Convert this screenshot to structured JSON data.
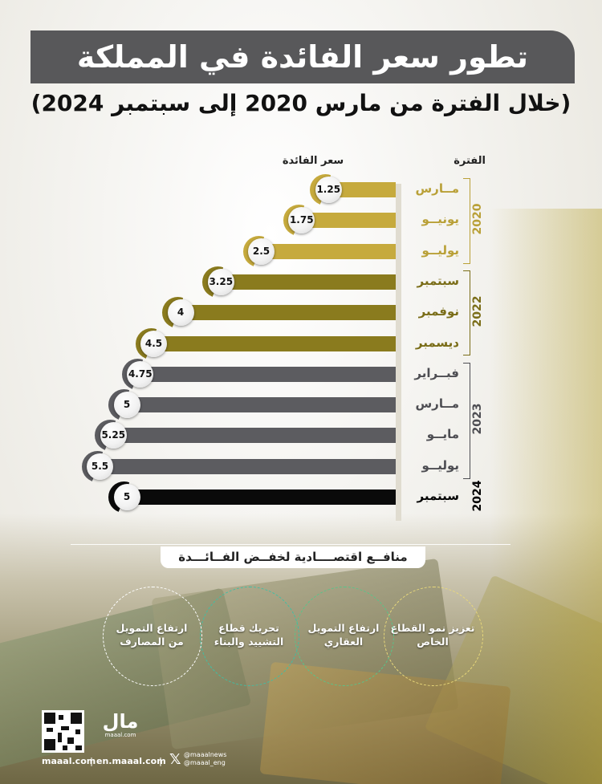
{
  "title": "تطور سعر الفائدة في المملكة",
  "subtitle": "(خلال الفترة من مارس 2020 إلى سبتمبر 2024)",
  "headers": {
    "period": "الفترة",
    "rate": "سعر الفائدة"
  },
  "colors": {
    "y2020": "#c6aa3d",
    "y2022": "#8a7b1e",
    "y2023": "#5c5c60",
    "y2024": "#0a0a0a"
  },
  "chart_data": {
    "type": "bar",
    "orientation": "horizontal",
    "title": "تطور سعر الفائدة في المملكة",
    "subtitle": "(خلال الفترة من مارس 2020 إلى سبتمبر 2024)",
    "xlabel": "سعر الفائدة",
    "ylabel": "الفترة",
    "xlim": [
      0,
      6
    ],
    "categories": [
      "مــارس",
      "يونيــو",
      "يوليــو",
      "سبتمبر",
      "نوفمبر",
      "ديسمبر",
      "فبــراير",
      "مــارس",
      "مايــو",
      "يوليــو",
      "سبتمبر"
    ],
    "years": [
      "2020",
      "2020",
      "2020",
      "2022",
      "2022",
      "2022",
      "2023",
      "2023",
      "2023",
      "2023",
      "2024"
    ],
    "values": [
      1.25,
      1.75,
      2.5,
      3.25,
      4,
      4.5,
      4.75,
      5,
      5.25,
      5.5,
      5
    ],
    "value_labels": [
      "1.25",
      "1.75",
      "2.5",
      "3.25",
      "4",
      "4.5",
      "4.75",
      "5",
      "5.25",
      "5.5",
      "5"
    ],
    "year_groups": [
      {
        "label": "2020",
        "start": 0,
        "end": 2
      },
      {
        "label": "2022",
        "start": 3,
        "end": 5
      },
      {
        "label": "2023",
        "start": 6,
        "end": 9
      },
      {
        "label": "2024",
        "start": 10,
        "end": 10
      }
    ]
  },
  "benefits": {
    "title": "منافــع اقتصــــادية لخفــض الفــائـــدة",
    "items": [
      {
        "label": "تعزيز نمو القطاع الخاص",
        "color": "#e9d97a"
      },
      {
        "label": "ارتفاع التمويل العقاري",
        "color": "#57c58a"
      },
      {
        "label": "تحريك قطاع التشييد والبناء",
        "color": "#3fbfa4"
      },
      {
        "label": "ارتفاع التمويل من المصارف",
        "color": "#ffffff"
      }
    ]
  },
  "footer": {
    "site": "maaal.com",
    "site_en": "en.maaal.com",
    "twitter1": "@maaalnews",
    "twitter2": "@maaal_eng",
    "logo_text": "مال",
    "logo_sub": "maaal.com",
    "x_icon": "x-logo-icon",
    "qr_icon": "qr-code-icon"
  }
}
